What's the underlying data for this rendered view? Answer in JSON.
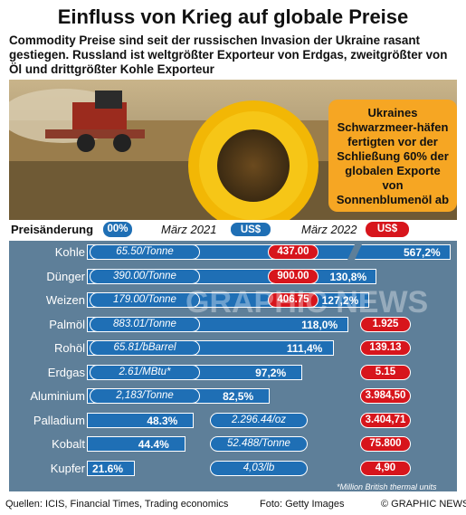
{
  "header": {
    "title": "Einfluss von Krieg auf globale Preise",
    "subtitle": "Commodity Preise sind seit der russischen Invasion der Ukraine rasant gestiegen. Russland ist weltgrößter Exporteur von Erdgas, zweitgrößter von Öl und drittgrößter Kohle Exporteur"
  },
  "callout": {
    "text": "Ukraines Schwarzmeer-häfen fertigten vor der Schließung 60% der globalen Exporte von Sonnenblumenöl ab"
  },
  "legend": {
    "change_label": "Preisänderung",
    "change_pill": "00%",
    "date_2021": "März 2021",
    "date_2022": "März 2022",
    "currency": "US$"
  },
  "colors": {
    "bar": "#1f6fb5",
    "panel": "#5e7f99",
    "red": "#d7151c",
    "callout": "#f6a623"
  },
  "watermark": "GRAPHIC NEWS",
  "chart_data": {
    "type": "bar",
    "orientation": "horizontal",
    "categories": [
      "Kohle",
      "Dünger",
      "Weizen",
      "Palmöl",
      "Rohöl",
      "Erdgas",
      "Aluminium",
      "Palladium",
      "Kobalt",
      "Kupfer"
    ],
    "series": [
      {
        "name": "Preisänderung",
        "values": [
          567.2,
          130.8,
          127.2,
          118.0,
          111.4,
          97.2,
          82.5,
          48.3,
          44.4,
          21.6
        ],
        "labels": [
          "567,2%",
          "130,8%",
          "127,2%",
          "118,0%",
          "111,4%",
          "97,2%",
          "82,5%",
          "48.3%",
          "44.4%",
          "21.6%"
        ]
      }
    ],
    "price_2021": [
      "65.50/Tonne",
      "390.00/Tonne",
      "179.00/Tonne",
      "883.01/Tonne",
      "65.81/bBarrel",
      "2.61/MBtu*",
      "2,183/Tonne",
      "2.296.44/oz",
      "52.488/Tonne",
      "4,03/lb"
    ],
    "price_2022": [
      "437.00",
      "900.00",
      "406.75",
      "1.925",
      "139.13",
      "5.15",
      "3.984,50",
      "3.404,71",
      "75.800",
      "4,90"
    ],
    "axis_break": true,
    "note": "*Million British thermal units"
  },
  "footer": {
    "sources": "Quellen: ICIS, Financial Times, Trading economics",
    "photo": "Foto: Getty Images",
    "copyright": "© GRAPHIC NEWS"
  }
}
